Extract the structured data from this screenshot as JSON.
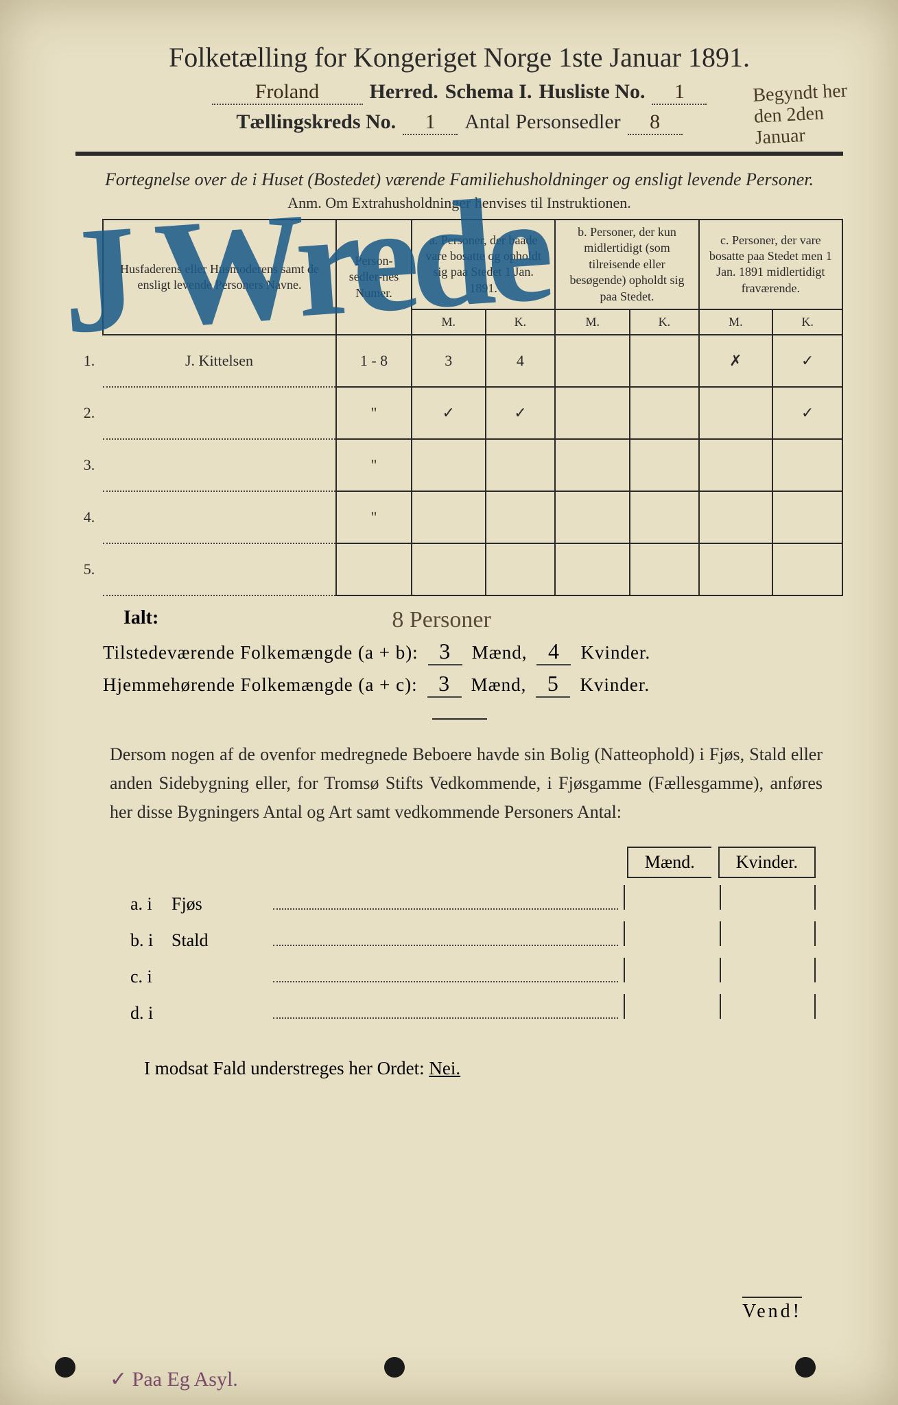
{
  "title": "Folketælling for Kongeriget Norge 1ste Januar 1891.",
  "line2": {
    "herred_value": "Froland",
    "herred_label": "Herred.",
    "schema_label": "Schema I.",
    "husliste_label": "Husliste No.",
    "husliste_value": "1"
  },
  "line3": {
    "kreds_label": "Tællingskreds No.",
    "kreds_value": "1",
    "antal_label": "Antal Personsedler",
    "antal_value": "8"
  },
  "margin_note": "Begyndt her den 2den Januar",
  "section_header": "Fortegnelse over de i Huset (Bostedet) værende Familiehusholdninger og ensligt levende Personer.",
  "anm": "Anm. Om Extrahusholdninger henvises til Instruktionen.",
  "overlay_script": "J Wrede",
  "table": {
    "col_name": "Husfaderens eller Husmoderens samt de ensligt levende Personers Navne.",
    "col_num": "Person-sedler-nes Numer.",
    "col_a": "a.\nPersoner, der baade vare bosatte og opholdt sig paa Stedet 1 Jan. 1891.",
    "col_b": "b.\nPersoner, der kun midlertidigt (som tilreisende eller besøgende) opholdt sig paa Stedet.",
    "col_c": "c.\nPersoner, der vare bosatte paa Stedet men 1 Jan. 1891 midlertidigt fraværende.",
    "mk_m": "M.",
    "mk_k": "K.",
    "rows": [
      {
        "n": "1.",
        "name": "J. Kittelsen",
        "num": "1 - 8",
        "am": "3",
        "ak": "4",
        "bm": "",
        "bk": "",
        "cm": "✗",
        "ck": "✓"
      },
      {
        "n": "2.",
        "name": "",
        "num": "\"",
        "am": "✓",
        "ak": "✓",
        "bm": "",
        "bk": "",
        "cm": "",
        "ck": "✓"
      },
      {
        "n": "3.",
        "name": "",
        "num": "\"",
        "am": "",
        "ak": "",
        "bm": "",
        "bk": "",
        "cm": "",
        "ck": ""
      },
      {
        "n": "4.",
        "name": "",
        "num": "\"",
        "am": "",
        "ak": "",
        "bm": "",
        "bk": "",
        "cm": "",
        "ck": ""
      },
      {
        "n": "5.",
        "name": "",
        "num": "",
        "am": "",
        "ak": "",
        "bm": "",
        "bk": "",
        "cm": "",
        "ck": ""
      }
    ]
  },
  "ialt_label": "Ialt:",
  "ialt_hand": "8 Personer",
  "summary1": {
    "label": "Tilstedeværende Folkemængde (a + b):",
    "m": "3",
    "m_label": "Mænd,",
    "k": "4",
    "k_label": "Kvinder."
  },
  "summary2": {
    "label": "Hjemmehørende Folkemængde (a + c):",
    "m": "3",
    "m_label": "Mænd,",
    "k": "5",
    "k_label": "Kvinder."
  },
  "paragraph": "Dersom nogen af de ovenfor medregnede Beboere havde sin Bolig (Natteophold) i Fjøs, Stald eller anden Sidebygning eller, for Tromsø Stifts Vedkommende, i Fjøsgamme (Fællesgamme), anføres her disse Bygningers Antal og Art samt vedkommende Personers Antal:",
  "sub": {
    "h_m": "Mænd.",
    "h_k": "Kvinder.",
    "rows": [
      {
        "lbl": "a.  i",
        "txt": "Fjøs"
      },
      {
        "lbl": "b.  i",
        "txt": "Stald"
      },
      {
        "lbl": "c.  i",
        "txt": ""
      },
      {
        "lbl": "d.  i",
        "txt": ""
      }
    ]
  },
  "nei_line": "I modsat Fald understreges her Ordet: ",
  "nei_word": "Nei.",
  "vend": "Vend!",
  "bottom_note": "✓ Paa Eg Asyl.",
  "colors": {
    "paper": "#e8e0c4",
    "ink": "#2a2a2a",
    "pencil_blue": "#1a5a8a",
    "handwriting": "#3a2a1a"
  }
}
